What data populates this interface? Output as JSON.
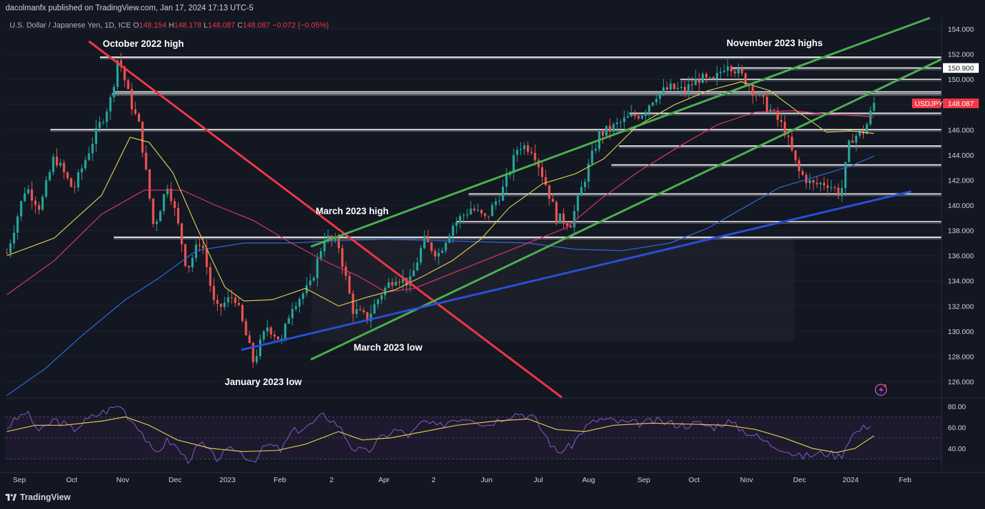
{
  "header": {
    "publisher": "dacolmanfx published on TradingView.com, Jan 17, 2024 17:13 UTC-5",
    "symbol": "U.S. Dollar / Japanese Yen, 1D, ICE",
    "open_label": "O",
    "open": "148.154",
    "high_label": "H",
    "high": "148.178",
    "low_label": "L",
    "low": "148.087",
    "close_label": "C",
    "close": "148.087",
    "change": "−0.072 (−0.05%)"
  },
  "brand": "TradingView",
  "chart_data": {
    "type": "candlestick",
    "symbol_tag": "USDJPY",
    "last_price": "148.087",
    "level_tag": "150.900",
    "ylim": [
      124.8,
      155.0
    ],
    "y_ticks": [
      "154.000",
      "152.000",
      "150.000",
      "148.000",
      "146.000",
      "144.000",
      "142.000",
      "140.000",
      "138.000",
      "136.000",
      "134.000",
      "132.000",
      "130.000",
      "128.000",
      "126.000"
    ],
    "x_ticks": [
      "Sep",
      "Oct",
      "Nov",
      "Dec",
      "2023",
      "Feb",
      "2",
      "Apr",
      "2",
      "Jun",
      "Jul",
      "Aug",
      "Sep",
      "Oct",
      "Nov",
      "Dec",
      "2024",
      "Feb"
    ],
    "rsi_ticks": [
      "80.00",
      "60.00",
      "40.00"
    ],
    "annotations": [
      {
        "text": "October 2022 high"
      },
      {
        "text": "November 2023 highs"
      },
      {
        "text": "March 2023 high"
      },
      {
        "text": "March 2023 low"
      },
      {
        "text": "January 2023 low"
      }
    ],
    "colors": {
      "up": "#26a69a",
      "down": "#ef5350",
      "ma50": "#d9c94a",
      "ma100": "#e0336f",
      "ma200": "#2f6bd8",
      "trend_down": "#f23645",
      "channel": "#4caf50",
      "support": "#2a4fd6",
      "rsi": "#7e57c2",
      "rsi_ma": "#d9c94a"
    },
    "price_path": [
      [
        0,
        136.2
      ],
      [
        8,
        141.5
      ],
      [
        14,
        139.8
      ],
      [
        20,
        143.9
      ],
      [
        28,
        141.2
      ],
      [
        36,
        145.0
      ],
      [
        44,
        148.5
      ],
      [
        47,
        151.9
      ],
      [
        52,
        148.3
      ],
      [
        56,
        146.2
      ],
      [
        62,
        138.2
      ],
      [
        68,
        141.8
      ],
      [
        73,
        137.8
      ],
      [
        76,
        134.9
      ],
      [
        82,
        137.4
      ],
      [
        88,
        131.6
      ],
      [
        96,
        132.9
      ],
      [
        104,
        127.6
      ],
      [
        110,
        130.4
      ],
      [
        116,
        129.2
      ],
      [
        120,
        132.0
      ],
      [
        128,
        133.6
      ],
      [
        134,
        137.5
      ],
      [
        140,
        136.8
      ],
      [
        146,
        131.7
      ],
      [
        152,
        131.0
      ],
      [
        158,
        133.0
      ],
      [
        164,
        134.4
      ],
      [
        170,
        133.8
      ],
      [
        176,
        137.2
      ],
      [
        182,
        136.1
      ],
      [
        188,
        138.4
      ],
      [
        196,
        139.8
      ],
      [
        202,
        138.9
      ],
      [
        210,
        141.5
      ],
      [
        216,
        144.8
      ],
      [
        222,
        144.5
      ],
      [
        228,
        141.4
      ],
      [
        232,
        139.0
      ],
      [
        238,
        138.6
      ],
      [
        244,
        142.2
      ],
      [
        250,
        145.6
      ],
      [
        256,
        146.2
      ],
      [
        262,
        146.9
      ],
      [
        268,
        147.3
      ],
      [
        274,
        148.8
      ],
      [
        280,
        149.3
      ],
      [
        286,
        149.1
      ],
      [
        292,
        150.1
      ],
      [
        298,
        149.7
      ],
      [
        304,
        151.4
      ],
      [
        310,
        150.3
      ],
      [
        316,
        148.9
      ],
      [
        322,
        147.6
      ],
      [
        328,
        146.1
      ],
      [
        334,
        142.7
      ],
      [
        340,
        141.6
      ],
      [
        346,
        141.8
      ],
      [
        352,
        140.9
      ],
      [
        356,
        145.3
      ],
      [
        362,
        145.9
      ],
      [
        366,
        148.1
      ]
    ],
    "ma50": [
      [
        0,
        136.0
      ],
      [
        20,
        137.4
      ],
      [
        40,
        140.8
      ],
      [
        52,
        145.4
      ],
      [
        60,
        145.0
      ],
      [
        70,
        142.6
      ],
      [
        80,
        138.3
      ],
      [
        92,
        133.5
      ],
      [
        100,
        132.4
      ],
      [
        112,
        132.5
      ],
      [
        126,
        133.4
      ],
      [
        140,
        132.0
      ],
      [
        152,
        132.7
      ],
      [
        164,
        133.3
      ],
      [
        176,
        134.4
      ],
      [
        188,
        135.6
      ],
      [
        200,
        137.3
      ],
      [
        212,
        139.8
      ],
      [
        226,
        141.7
      ],
      [
        240,
        142.5
      ],
      [
        252,
        143.7
      ],
      [
        266,
        146.3
      ],
      [
        282,
        148.0
      ],
      [
        296,
        149.1
      ],
      [
        310,
        149.8
      ],
      [
        322,
        149.1
      ],
      [
        334,
        147.4
      ],
      [
        346,
        145.8
      ],
      [
        356,
        145.9
      ],
      [
        366,
        145.7
      ]
    ],
    "ma100": [
      [
        0,
        132.9
      ],
      [
        20,
        135.6
      ],
      [
        40,
        139.3
      ],
      [
        58,
        141.2
      ],
      [
        74,
        141.2
      ],
      [
        88,
        140.0
      ],
      [
        104,
        138.8
      ],
      [
        120,
        137.0
      ],
      [
        136,
        135.4
      ],
      [
        148,
        134.4
      ],
      [
        160,
        133.1
      ],
      [
        172,
        133.4
      ],
      [
        188,
        134.6
      ],
      [
        204,
        135.8
      ],
      [
        220,
        137.0
      ],
      [
        236,
        138.2
      ],
      [
        250,
        140.4
      ],
      [
        266,
        142.6
      ],
      [
        284,
        144.7
      ],
      [
        300,
        146.4
      ],
      [
        316,
        147.4
      ],
      [
        332,
        147.5
      ],
      [
        348,
        147.2
      ],
      [
        360,
        147.1
      ],
      [
        366,
        147.0
      ]
    ],
    "ma200": [
      [
        0,
        124.9
      ],
      [
        16,
        127.0
      ],
      [
        32,
        129.7
      ],
      [
        50,
        132.5
      ],
      [
        64,
        134.2
      ],
      [
        80,
        136.4
      ],
      [
        100,
        137.0
      ],
      [
        120,
        137.0
      ],
      [
        140,
        137.2
      ],
      [
        160,
        137.3
      ],
      [
        180,
        137.2
      ],
      [
        200,
        137.1
      ],
      [
        220,
        137.0
      ],
      [
        240,
        136.5
      ],
      [
        260,
        136.4
      ],
      [
        280,
        137.0
      ],
      [
        296,
        138.2
      ],
      [
        312,
        139.9
      ],
      [
        326,
        141.4
      ],
      [
        342,
        142.3
      ],
      [
        356,
        143.1
      ],
      [
        366,
        143.9
      ]
    ],
    "rsi": [
      [
        0,
        60
      ],
      [
        8,
        75
      ],
      [
        14,
        55
      ],
      [
        20,
        68
      ],
      [
        28,
        58
      ],
      [
        36,
        70
      ],
      [
        44,
        78
      ],
      [
        48,
        81
      ],
      [
        52,
        68
      ],
      [
        56,
        60
      ],
      [
        62,
        34
      ],
      [
        68,
        48
      ],
      [
        73,
        38
      ],
      [
        76,
        28
      ],
      [
        82,
        45
      ],
      [
        88,
        30
      ],
      [
        96,
        40
      ],
      [
        104,
        28
      ],
      [
        110,
        44
      ],
      [
        116,
        38
      ],
      [
        120,
        55
      ],
      [
        128,
        62
      ],
      [
        134,
        72
      ],
      [
        140,
        62
      ],
      [
        146,
        40
      ],
      [
        152,
        36
      ],
      [
        158,
        50
      ],
      [
        164,
        58
      ],
      [
        170,
        52
      ],
      [
        176,
        66
      ],
      [
        182,
        60
      ],
      [
        188,
        68
      ],
      [
        196,
        70
      ],
      [
        202,
        62
      ],
      [
        210,
        70
      ],
      [
        216,
        74
      ],
      [
        222,
        70
      ],
      [
        228,
        50
      ],
      [
        232,
        36
      ],
      [
        238,
        42
      ],
      [
        244,
        60
      ],
      [
        250,
        68
      ],
      [
        256,
        66
      ],
      [
        262,
        64
      ],
      [
        268,
        64
      ],
      [
        274,
        66
      ],
      [
        280,
        64
      ],
      [
        286,
        62
      ],
      [
        292,
        64
      ],
      [
        298,
        60
      ],
      [
        304,
        66
      ],
      [
        310,
        58
      ],
      [
        316,
        52
      ],
      [
        322,
        44
      ],
      [
        328,
        40
      ],
      [
        334,
        32
      ],
      [
        340,
        34
      ],
      [
        346,
        36
      ],
      [
        352,
        32
      ],
      [
        356,
        52
      ],
      [
        362,
        60
      ],
      [
        366,
        66
      ]
    ],
    "rsi_ma": [
      [
        0,
        56
      ],
      [
        12,
        62
      ],
      [
        24,
        62
      ],
      [
        40,
        66
      ],
      [
        50,
        70
      ],
      [
        60,
        62
      ],
      [
        72,
        48
      ],
      [
        86,
        40
      ],
      [
        100,
        37
      ],
      [
        114,
        38
      ],
      [
        126,
        44
      ],
      [
        140,
        56
      ],
      [
        150,
        48
      ],
      [
        162,
        50
      ],
      [
        176,
        56
      ],
      [
        190,
        62
      ],
      [
        206,
        66
      ],
      [
        220,
        68
      ],
      [
        232,
        58
      ],
      [
        244,
        56
      ],
      [
        256,
        62
      ],
      [
        272,
        64
      ],
      [
        290,
        63
      ],
      [
        304,
        62
      ],
      [
        316,
        58
      ],
      [
        328,
        50
      ],
      [
        340,
        40
      ],
      [
        350,
        36
      ],
      [
        358,
        40
      ],
      [
        366,
        52
      ]
    ]
  }
}
